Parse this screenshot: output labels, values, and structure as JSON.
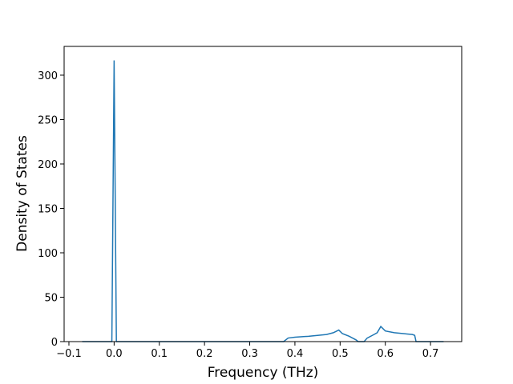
{
  "chart_data": {
    "type": "line",
    "xlabel": "Frequency (THz)",
    "ylabel": "Density of States",
    "x": [
      -0.0706,
      -0.005,
      0.0,
      0.005,
      0.375,
      0.385,
      0.4,
      0.43,
      0.47,
      0.485,
      0.497,
      0.505,
      0.52,
      0.535,
      0.54,
      0.553,
      0.56,
      0.575,
      0.582,
      0.59,
      0.6,
      0.62,
      0.64,
      0.66,
      0.665,
      0.668,
      0.729
    ],
    "series": [
      {
        "color": "#1f77b4",
        "values": [
          0,
          0,
          316.6,
          0,
          0,
          4,
          5,
          6,
          8,
          10,
          13,
          9,
          6,
          2,
          0,
          0,
          4,
          8,
          10,
          17,
          12,
          10,
          9,
          8,
          7,
          0,
          0
        ]
      }
    ],
    "xlim": [
      -0.1106,
      0.769
    ],
    "ylim": [
      0,
      332.4
    ],
    "xticks": [
      {
        "value": -0.1,
        "label": "−0.1"
      },
      {
        "value": 0,
        "label": "0.0"
      },
      0.1,
      0.2,
      0.3,
      0.4,
      0.5,
      0.6,
      0.7
    ],
    "yticks": [
      0,
      50,
      100,
      150,
      200,
      250,
      300
    ]
  }
}
